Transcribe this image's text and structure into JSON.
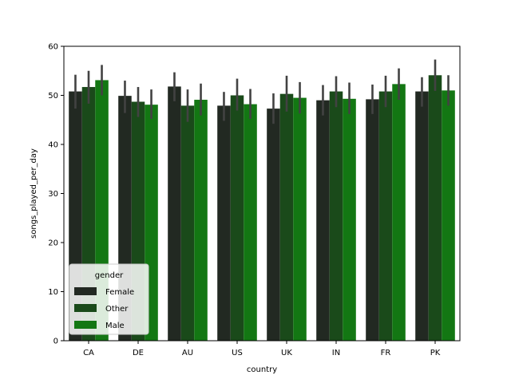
{
  "chart_data": {
    "type": "bar",
    "title": "",
    "xlabel": "country",
    "ylabel": "songs_played_per_day",
    "ylim": [
      0,
      60
    ],
    "yticks": [
      0,
      10,
      20,
      30,
      40,
      50,
      60
    ],
    "grid": false,
    "categories": [
      "CA",
      "DE",
      "AU",
      "US",
      "UK",
      "IN",
      "FR",
      "PK"
    ],
    "legend": {
      "title": "gender",
      "placement": "lower-left"
    },
    "series": [
      {
        "name": "Female",
        "color": "#222922",
        "values": [
          50.8,
          49.9,
          51.8,
          47.9,
          47.3,
          49.0,
          49.2,
          50.8
        ],
        "ci_low": [
          47.3,
          46.4,
          48.8,
          44.8,
          44.2,
          45.9,
          46.2,
          47.7
        ],
        "ci_high": [
          54.2,
          53.0,
          54.7,
          50.7,
          50.4,
          52.1,
          52.2,
          53.7
        ]
      },
      {
        "name": "Other",
        "color": "#1a4a1a",
        "values": [
          51.7,
          48.7,
          47.9,
          50.0,
          50.3,
          50.8,
          50.8,
          54.1
        ],
        "ci_low": [
          48.3,
          45.6,
          44.6,
          46.9,
          46.7,
          47.6,
          47.6,
          50.9
        ],
        "ci_high": [
          55.0,
          51.7,
          51.2,
          53.4,
          54.0,
          53.9,
          54.0,
          57.3
        ]
      },
      {
        "name": "Male",
        "color": "#137713",
        "values": [
          53.1,
          48.1,
          49.1,
          48.2,
          49.5,
          49.3,
          52.3,
          51.0
        ],
        "ci_low": [
          50.0,
          45.2,
          45.9,
          45.2,
          46.3,
          46.2,
          49.1,
          47.9
        ],
        "ci_high": [
          56.2,
          51.2,
          52.4,
          51.3,
          52.7,
          52.6,
          55.5,
          54.1
        ]
      }
    ],
    "errorbar_color": "#424242"
  }
}
